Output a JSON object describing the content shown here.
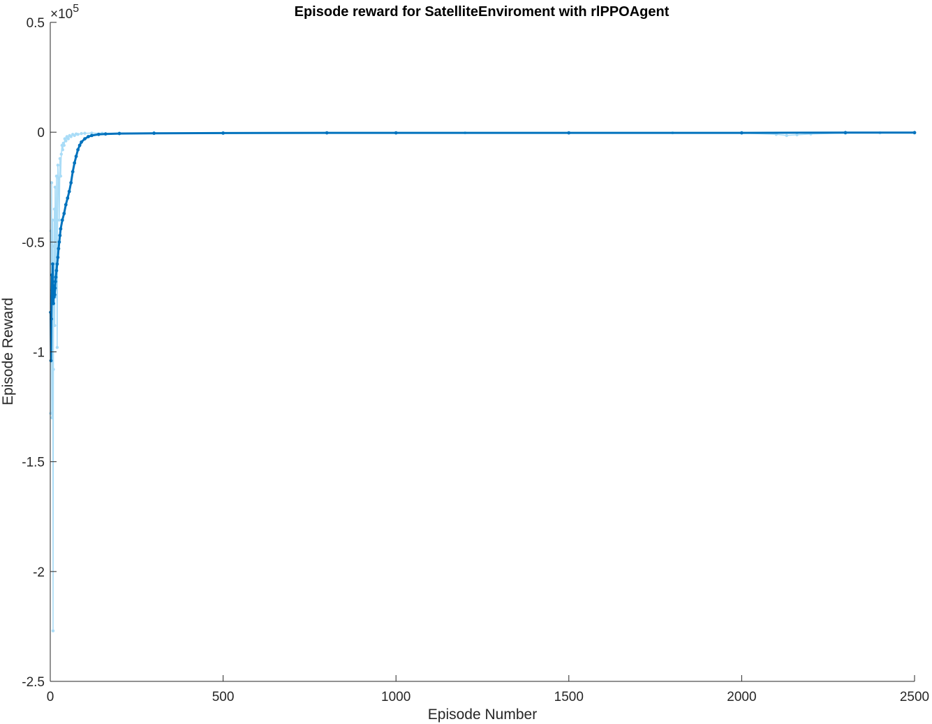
{
  "chart_data": {
    "type": "line",
    "title": "Episode reward for SatelliteEnviroment with rlPPOAgent",
    "xlabel": "Episode Number",
    "ylabel": "Episode Reward",
    "y_exponent_label": {
      "base": "×10",
      "power": "5"
    },
    "xlim": [
      0,
      2500
    ],
    "ylim": [
      -2.5,
      0.5
    ],
    "x_ticks": [
      0,
      500,
      1000,
      1500,
      2000,
      2500
    ],
    "x_tick_labels": [
      "0",
      "500",
      "1000",
      "1500",
      "2000",
      "2500"
    ],
    "y_ticks": [
      -2.5,
      -2,
      -1.5,
      -1,
      -0.5,
      0,
      0.5
    ],
    "y_tick_labels": [
      "-2.5",
      "-2",
      "-1.5",
      "-1",
      "-0.5",
      "0",
      "0.5"
    ],
    "grid": false,
    "legend": "none",
    "colors": {
      "raw": "#a9dcf7",
      "average": "#0072bd"
    },
    "series": [
      {
        "role": "raw",
        "x": [
          1,
          2,
          3,
          4,
          5,
          6,
          7,
          8,
          9,
          10,
          11,
          12,
          13,
          14,
          15,
          16,
          18,
          20,
          22,
          24,
          26,
          28,
          30,
          32,
          34,
          36,
          38,
          40,
          42,
          45,
          48,
          52,
          56,
          60,
          65,
          70,
          75,
          80,
          90,
          100,
          120,
          150,
          200,
          300,
          500,
          800,
          1000,
          1200,
          1500,
          1800,
          2000,
          2100,
          2130,
          2160,
          2200,
          2300,
          2400,
          2500
        ],
        "y": [
          -1.28,
          -0.45,
          -0.78,
          -0.23,
          -1.3,
          -0.6,
          -0.4,
          -2.27,
          -1.08,
          -0.7,
          -0.52,
          -0.35,
          -0.88,
          -0.25,
          -0.75,
          -0.55,
          -0.2,
          -0.98,
          -0.15,
          -0.21,
          -0.4,
          -0.12,
          -0.2,
          -0.1,
          -0.06,
          -0.08,
          -0.05,
          -0.06,
          -0.03,
          -0.04,
          -0.02,
          -0.03,
          -0.015,
          -0.02,
          -0.01,
          -0.015,
          -0.008,
          -0.01,
          -0.006,
          -0.005,
          -0.004,
          -0.005,
          -0.004,
          -0.003,
          -0.005,
          -0.003,
          -0.004,
          -0.003,
          -0.004,
          -0.003,
          -0.004,
          -0.01,
          -0.015,
          -0.012,
          -0.008,
          -0.004,
          -0.003,
          -0.003
        ]
      },
      {
        "role": "average",
        "x": [
          1,
          2,
          3,
          4,
          5,
          6,
          7,
          8,
          9,
          10,
          11,
          12,
          13,
          14,
          15,
          16,
          18,
          20,
          22,
          24,
          26,
          28,
          30,
          35,
          40,
          45,
          50,
          55,
          60,
          65,
          70,
          75,
          80,
          85,
          90,
          100,
          110,
          120,
          140,
          160,
          200,
          300,
          500,
          800,
          1000,
          1500,
          2000,
          2300,
          2500
        ],
        "y": [
          -0.82,
          -1.04,
          -0.85,
          -0.75,
          -0.65,
          -0.72,
          -0.6,
          -0.74,
          -0.78,
          -0.7,
          -0.75,
          -0.72,
          -0.74,
          -0.71,
          -0.68,
          -0.66,
          -0.63,
          -0.6,
          -0.57,
          -0.53,
          -0.5,
          -0.47,
          -0.44,
          -0.4,
          -0.37,
          -0.33,
          -0.3,
          -0.27,
          -0.23,
          -0.18,
          -0.14,
          -0.11,
          -0.08,
          -0.06,
          -0.045,
          -0.03,
          -0.02,
          -0.015,
          -0.01,
          -0.008,
          -0.006,
          -0.005,
          -0.004,
          -0.003,
          -0.003,
          -0.003,
          -0.003,
          -0.002,
          -0.002
        ]
      }
    ]
  }
}
